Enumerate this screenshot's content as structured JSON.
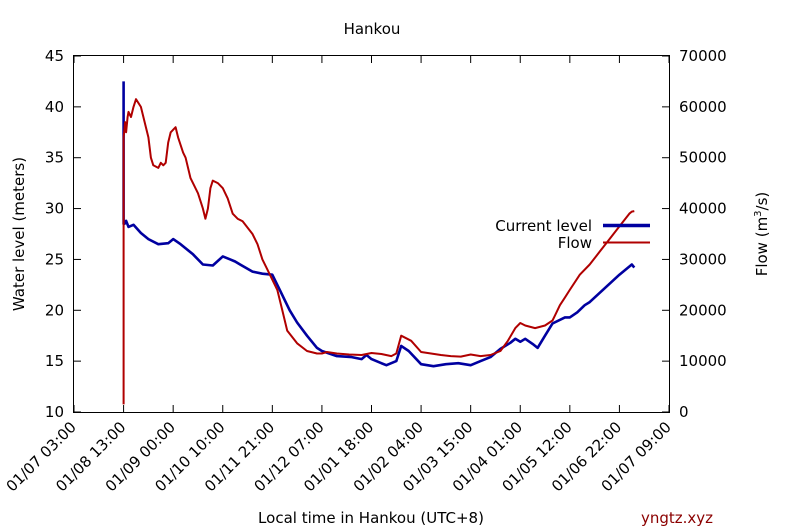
{
  "chart_data": {
    "type": "line",
    "title": "Hankou",
    "xlabel": "Local time in Hankou (UTC+8)",
    "ylabel_left": "Water level (meters)",
    "ylabel_right_prefix": "Flow (m",
    "ylabel_right_sup": "3",
    "ylabel_right_suffix": "/s)",
    "watermark": "yngtz.xyz",
    "grid": false,
    "legend_position": "right",
    "x_ticks": [
      "01/07 03:00",
      "01/08 13:00",
      "01/09 00:00",
      "01/10 10:00",
      "01/11 21:00",
      "01/12 07:00",
      "01/01 18:00",
      "01/02 04:00",
      "01/03 15:00",
      "01/04 01:00",
      "01/05 12:00",
      "01/06 22:00",
      "01/07 09:00"
    ],
    "ylim_left": [
      10,
      45
    ],
    "yticks_left": [
      "10",
      "15",
      "20",
      "25",
      "30",
      "35",
      "40",
      "45"
    ],
    "ylim_right": [
      0,
      70000
    ],
    "yticks_right": [
      "0",
      "10000",
      "20000",
      "30000",
      "40000",
      "50000",
      "60000",
      "70000"
    ],
    "series": [
      {
        "name": "Current level",
        "axis": "left",
        "color": "#0000a0",
        "x": [
          1.0,
          1.0,
          1.02,
          1.05,
          1.1,
          1.2,
          1.35,
          1.5,
          1.7,
          1.9,
          2.0,
          2.15,
          2.4,
          2.6,
          2.8,
          3.0,
          3.15,
          3.25,
          3.35,
          3.6,
          3.8,
          4.0,
          4.15,
          4.25,
          4.35,
          4.5,
          4.7,
          4.9,
          5.0,
          5.3,
          5.6,
          5.8,
          5.9,
          6.0,
          6.2,
          6.3,
          6.5,
          6.6,
          6.75,
          7.0,
          7.25,
          7.5,
          7.75,
          8.0,
          8.2,
          8.4,
          8.6,
          8.8,
          8.9,
          9.0,
          9.1,
          9.25,
          9.35,
          9.5,
          9.65,
          9.9,
          10.0,
          10.15,
          10.3,
          10.4,
          11.0,
          11.25,
          11.3
        ],
        "y": [
          42.5,
          28.5,
          28.5,
          28.8,
          28.2,
          28.4,
          27.6,
          27.0,
          26.5,
          26.6,
          27.0,
          26.5,
          25.5,
          24.5,
          24.4,
          25.3,
          25.0,
          24.8,
          24.5,
          23.8,
          23.6,
          23.5,
          22.0,
          21.0,
          20.0,
          18.8,
          17.5,
          16.3,
          16.0,
          15.5,
          15.4,
          15.2,
          15.6,
          15.2,
          14.8,
          14.6,
          15.0,
          16.5,
          16.0,
          14.7,
          14.5,
          14.7,
          14.8,
          14.6,
          15.0,
          15.4,
          16.2,
          16.8,
          17.2,
          16.9,
          17.2,
          16.7,
          16.3,
          17.5,
          18.7,
          19.3,
          19.3,
          19.8,
          20.5,
          20.8,
          23.5,
          24.5,
          24.2
        ]
      },
      {
        "name": "Flow",
        "axis": "right",
        "color": "#b00000",
        "x": [
          1.0,
          1.0,
          1.02,
          1.03,
          1.05,
          1.08,
          1.1,
          1.15,
          1.2,
          1.25,
          1.35,
          1.45,
          1.5,
          1.55,
          1.6,
          1.7,
          1.75,
          1.8,
          1.85,
          1.9,
          1.95,
          2.05,
          2.1,
          2.2,
          2.25,
          2.35,
          2.5,
          2.6,
          2.65,
          2.7,
          2.75,
          2.8,
          2.9,
          3.0,
          3.1,
          3.2,
          3.3,
          3.4,
          3.6,
          3.7,
          3.8,
          3.9,
          4.1,
          4.2,
          4.3,
          4.5,
          4.7,
          4.9,
          5.0,
          5.1,
          5.3,
          5.55,
          5.8,
          6.0,
          6.2,
          6.4,
          6.5,
          6.6,
          6.8,
          7.0,
          7.2,
          7.4,
          7.6,
          7.8,
          8.0,
          8.2,
          8.4,
          8.6,
          8.75,
          8.9,
          9.0,
          9.1,
          9.3,
          9.5,
          9.65,
          9.7,
          9.8,
          9.9,
          10.0,
          10.2,
          10.4,
          10.6,
          10.8,
          11.0,
          11.2,
          11.25,
          11.3
        ],
        "y": [
          1500,
          54000,
          56000,
          57000,
          55000,
          58000,
          59000,
          58000,
          60000,
          61500,
          60000,
          56000,
          54000,
          50000,
          48500,
          48000,
          49000,
          48500,
          49000,
          53000,
          55000,
          56000,
          54000,
          51000,
          50000,
          46000,
          43000,
          40000,
          38000,
          40000,
          44000,
          45500,
          45000,
          44000,
          42000,
          39000,
          38000,
          37500,
          35000,
          33000,
          30000,
          28000,
          24000,
          20000,
          16000,
          13500,
          12000,
          11500,
          11500,
          11800,
          11500,
          11300,
          11200,
          11600,
          11400,
          11000,
          11500,
          15000,
          14000,
          11800,
          11500,
          11200,
          11000,
          10900,
          11300,
          11000,
          11200,
          12000,
          14000,
          16500,
          17500,
          17000,
          16500,
          17000,
          18000,
          19000,
          21000,
          22500,
          24000,
          27000,
          29000,
          31500,
          34000,
          36500,
          39000,
          39400,
          39500
        ]
      }
    ]
  }
}
